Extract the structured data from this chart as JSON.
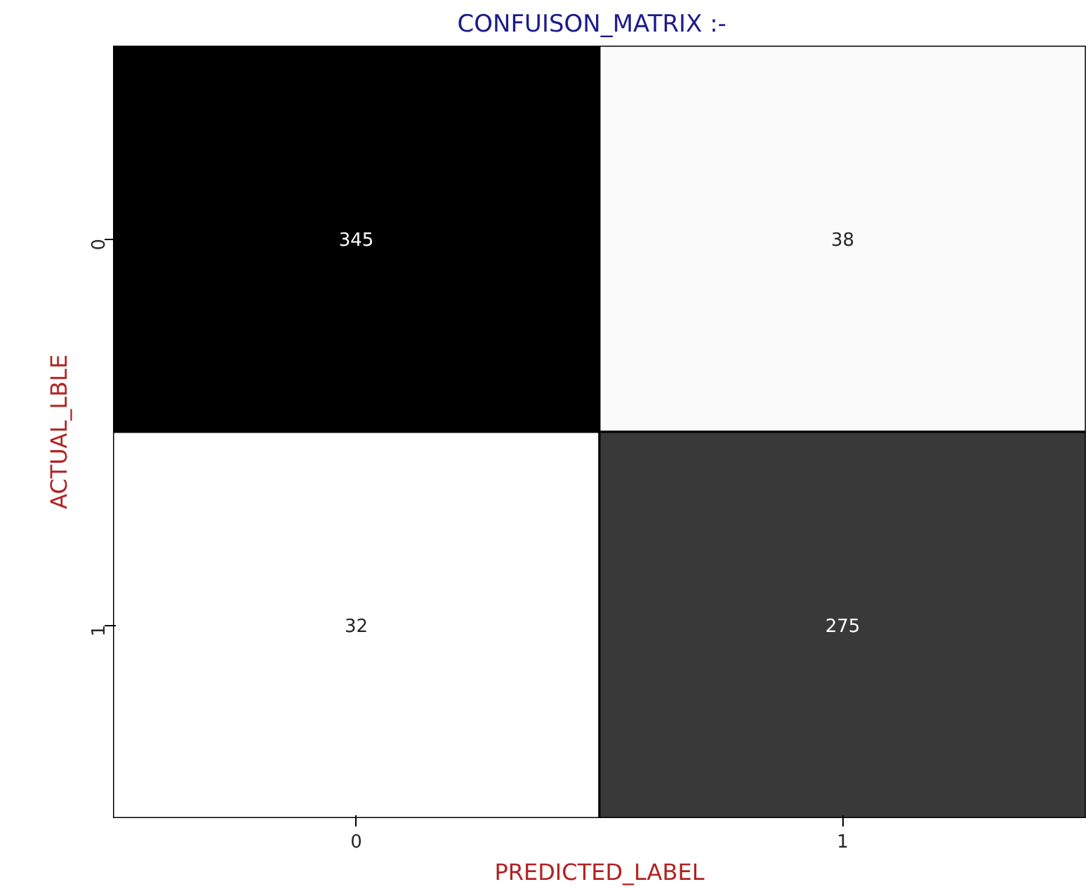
{
  "chart_data": {
    "type": "heatmap",
    "title": "CONFUISON_MATRIX   :-",
    "xlabel": "PREDICTED_LABEL",
    "ylabel": "ACTUAL_LBLE",
    "categories": [
      "0",
      "1"
    ],
    "y_categories": [
      "0",
      "1"
    ],
    "cells": [
      [
        345,
        38
      ],
      [
        32,
        275
      ]
    ],
    "data_labels": true
  }
}
